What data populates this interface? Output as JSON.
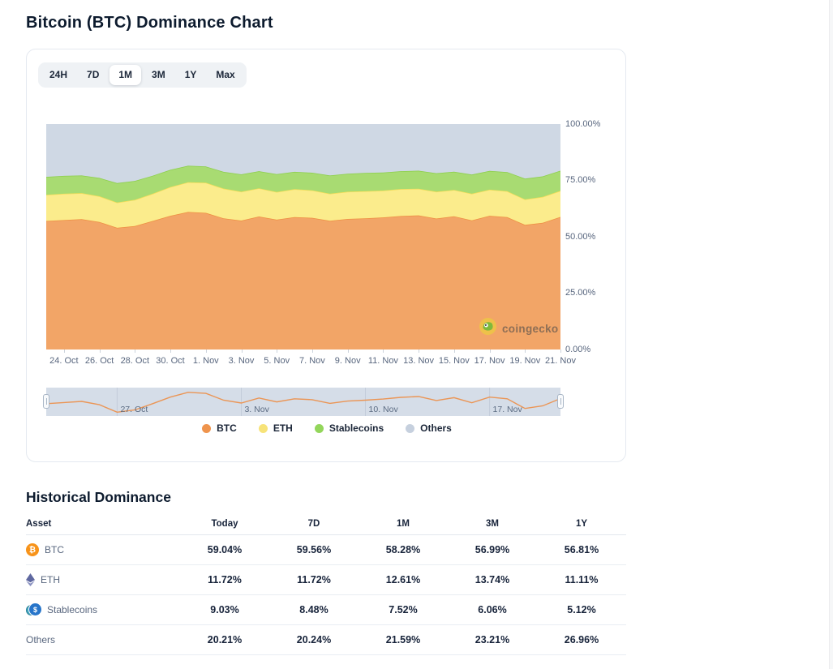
{
  "page": {
    "title": "Bitcoin (BTC) Dominance Chart"
  },
  "chart_card": {
    "ranges": [
      "24H",
      "7D",
      "1M",
      "3M",
      "1Y",
      "Max"
    ],
    "active_range": "1M",
    "watermark": "coingecko"
  },
  "chart_data": {
    "type": "area",
    "stacked": true,
    "title": "Bitcoin (BTC) Dominance Chart",
    "ylim": [
      0,
      100
    ],
    "grid": false,
    "legend_position": "bottom-center",
    "y_tick_labels": [
      "0.00%",
      "25.00%",
      "50.00%",
      "75.00%",
      "100.00%"
    ],
    "x": [
      "23 Oct",
      "24 Oct",
      "25 Oct",
      "26 Oct",
      "27 Oct",
      "28 Oct",
      "29 Oct",
      "30 Oct",
      "31 Oct",
      "1 Nov",
      "2 Nov",
      "3 Nov",
      "4 Nov",
      "5 Nov",
      "6 Nov",
      "7 Nov",
      "8 Nov",
      "9 Nov",
      "10 Nov",
      "11 Nov",
      "12 Nov",
      "13 Nov",
      "14 Nov",
      "15 Nov",
      "16 Nov",
      "17 Nov",
      "18 Nov",
      "19 Nov",
      "20 Nov",
      "21 Nov"
    ],
    "x_tick_labels": [
      "24. Oct",
      "26. Oct",
      "28. Oct",
      "30. Oct",
      "1. Nov",
      "3. Nov",
      "5. Nov",
      "7. Nov",
      "9. Nov",
      "11. Nov",
      "13. Nov",
      "15. Nov",
      "17. Nov",
      "19. Nov",
      "21. Nov"
    ],
    "series": [
      {
        "name": "BTC",
        "fill": "#f2a567",
        "line": "#ee8f43",
        "dot": "#ef944d",
        "values": [
          57.0,
          57.4,
          57.8,
          56.6,
          54.0,
          54.8,
          57.0,
          59.3,
          61.0,
          60.6,
          58.2,
          57.2,
          59.0,
          57.6,
          58.7,
          58.4,
          57.1,
          57.9,
          58.2,
          58.6,
          59.2,
          59.5,
          58.1,
          59.1,
          57.3,
          59.3,
          58.7,
          55.3,
          56.2,
          58.8
        ]
      },
      {
        "name": "ETH",
        "fill": "#fbec8c",
        "line": "#f6dd58",
        "dot": "#f7e379",
        "values": [
          11.6,
          11.7,
          11.6,
          11.4,
          11.2,
          11.6,
          12.1,
          12.8,
          13.2,
          13.4,
          13.2,
          12.8,
          12.5,
          12.3,
          12.4,
          12.2,
          12.0,
          12.1,
          12.0,
          11.9,
          12.0,
          11.8,
          11.9,
          11.7,
          11.8,
          11.6,
          11.5,
          11.3,
          11.5,
          11.6
        ]
      },
      {
        "name": "Stablecoins",
        "fill": "#a8db72",
        "line": "#8ccf4a",
        "dot": "#93d65b",
        "values": [
          8.0,
          7.9,
          7.8,
          8.1,
          8.6,
          8.4,
          8.0,
          7.6,
          7.3,
          7.2,
          7.4,
          7.7,
          7.6,
          7.9,
          7.7,
          7.8,
          8.1,
          8.0,
          8.1,
          8.0,
          7.9,
          8.0,
          8.2,
          8.1,
          8.5,
          8.3,
          8.5,
          9.2,
          9.1,
          8.9
        ]
      },
      {
        "name": "Others",
        "fill": "#cfd8e4",
        "line": null,
        "dot": "#c6d0de",
        "values": [
          23.4,
          23.0,
          22.8,
          23.9,
          26.2,
          25.2,
          22.9,
          20.3,
          18.5,
          18.8,
          21.2,
          22.3,
          20.9,
          22.2,
          21.2,
          21.6,
          22.8,
          22.0,
          21.7,
          21.5,
          20.9,
          20.7,
          21.8,
          21.1,
          22.4,
          20.8,
          21.3,
          24.2,
          23.2,
          20.7
        ]
      }
    ],
    "navigator": {
      "series": "BTC",
      "background": "#d5dde8",
      "line_color": "#eb9555",
      "labels": [
        {
          "label": "27. Oct",
          "index": 4
        },
        {
          "label": "3. Nov",
          "index": 11
        },
        {
          "label": "10. Nov",
          "index": 18
        },
        {
          "label": "17. Nov",
          "index": 25
        }
      ]
    }
  },
  "table": {
    "heading": "Historical Dominance",
    "columns": [
      "Asset",
      "Today",
      "7D",
      "1M",
      "3M",
      "1Y"
    ],
    "rows": [
      {
        "asset": "BTC",
        "icon": "btc",
        "values": [
          "59.04%",
          "59.56%",
          "58.28%",
          "56.99%",
          "56.81%"
        ]
      },
      {
        "asset": "ETH",
        "icon": "eth",
        "values": [
          "11.72%",
          "11.72%",
          "12.61%",
          "13.74%",
          "11.11%"
        ]
      },
      {
        "asset": "Stablecoins",
        "icon": "stablecoins",
        "values": [
          "9.03%",
          "8.48%",
          "7.52%",
          "6.06%",
          "5.12%"
        ]
      },
      {
        "asset": "Others",
        "icon": null,
        "values": [
          "20.21%",
          "20.24%",
          "21.59%",
          "23.21%",
          "26.96%"
        ]
      }
    ]
  }
}
